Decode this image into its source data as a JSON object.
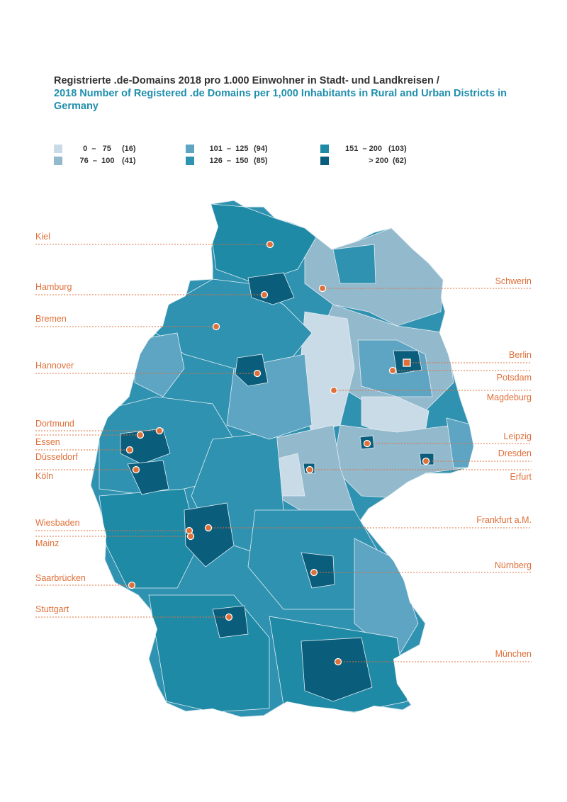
{
  "title": {
    "de": "Registrierte .de-Domains 2018 pro 1.000 Einwohner in Stadt- und Landkreisen /",
    "en": "2018 Number of Registered .de Domains per 1,000 Inhabitants in Rural and Urban Districts in Germany"
  },
  "colors": {
    "c0": "#c9dbe6",
    "c1": "#93b9cd",
    "c2": "#5ea5c3",
    "c3": "#2f92b0",
    "c4": "#1f8aa6",
    "c5": "#0a5e7c",
    "accent": "#e0703a"
  },
  "legend": [
    {
      "range": "0  –   75",
      "count": "(16)"
    },
    {
      "range": "76  –  100",
      "count": "(41)"
    },
    {
      "range": "101  –  125",
      "count": "(94)"
    },
    {
      "range": "126  –  150",
      "count": "(85)"
    },
    {
      "range": "151  – 200",
      "count": "(103)"
    },
    {
      "range": "> 200",
      "count": "(62)"
    }
  ],
  "cities": {
    "kiel": "Kiel",
    "hamburg": "Hamburg",
    "bremen": "Bremen",
    "hannover": "Hannover",
    "dortmund": "Dortmund",
    "essen": "Essen",
    "duesseldorf": "Düsseldorf",
    "koeln": "Köln",
    "wiesbaden": "Wiesbaden",
    "mainz": "Mainz",
    "saarbruecken": "Saarbrücken",
    "stuttgart": "Stuttgart",
    "schwerin": "Schwerin",
    "berlin": "Berlin",
    "potsdam": "Potsdam",
    "magdeburg": "Magdeburg",
    "leipzig": "Leipzig",
    "dresden": "Dresden",
    "erfurt": "Erfurt",
    "frankfurt": "Frankfurt a.M.",
    "nuernberg": "Nürnberg",
    "muenchen": "München"
  }
}
